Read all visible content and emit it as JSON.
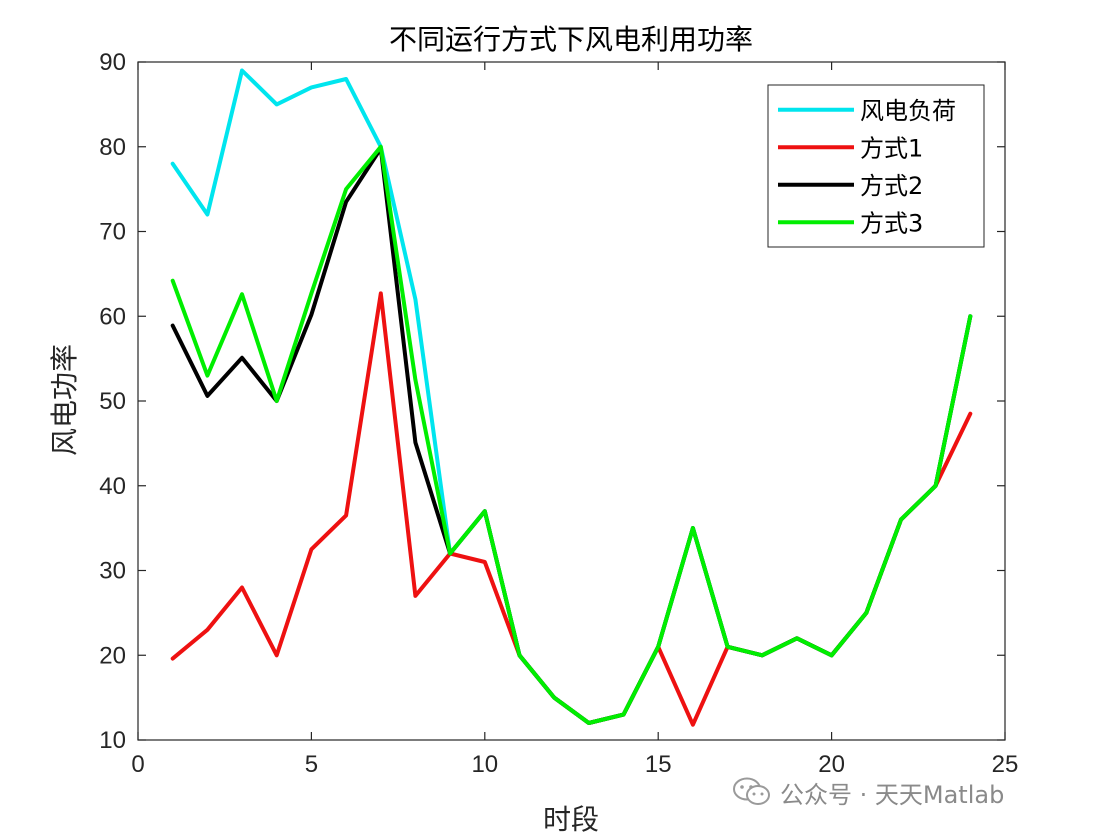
{
  "chart_data": {
    "type": "line",
    "title": "不同运行方式下风电利用功率",
    "xlabel": "时段",
    "ylabel": "风电功率",
    "xlim": [
      0,
      25
    ],
    "ylim": [
      10,
      90
    ],
    "xticks": [
      0,
      5,
      10,
      15,
      20,
      25
    ],
    "yticks": [
      10,
      20,
      30,
      40,
      50,
      60,
      70,
      80,
      90
    ],
    "x": [
      1,
      2,
      3,
      4,
      5,
      6,
      7,
      8,
      9,
      10,
      11,
      12,
      13,
      14,
      15,
      16,
      17,
      18,
      19,
      20,
      21,
      22,
      23,
      24
    ],
    "series": [
      {
        "name": "风电负荷",
        "color": "#00e5ee",
        "values": [
          78,
          72,
          89,
          85,
          87,
          88,
          80,
          62,
          32,
          37,
          20,
          15,
          12,
          13,
          21,
          35,
          21,
          20,
          22,
          20,
          25,
          36,
          40,
          60
        ]
      },
      {
        "name": "方式1",
        "color": "#ee1111",
        "values": [
          19.6,
          23,
          28,
          20,
          32.5,
          36.5,
          62.7,
          27,
          32,
          31,
          20,
          15,
          12,
          13,
          21,
          11.8,
          21,
          20,
          22,
          20,
          25,
          36,
          40,
          48.5
        ]
      },
      {
        "name": "方式2",
        "color": "#000000",
        "values": [
          58.9,
          50.6,
          55.1,
          50,
          60.2,
          73.5,
          79.8,
          45.1,
          32,
          37,
          20,
          15,
          12,
          13,
          21,
          35,
          21,
          20,
          22,
          20,
          25,
          36,
          40,
          60
        ]
      },
      {
        "name": "方式3",
        "color": "#00ee00",
        "values": [
          64.2,
          53,
          62.6,
          50,
          62.7,
          75,
          80,
          52.5,
          32,
          37,
          20,
          15,
          12,
          13,
          21,
          35,
          21,
          20,
          22,
          20,
          25,
          36,
          40,
          60
        ]
      }
    ],
    "legend": "top-right",
    "grid": false
  },
  "watermark": {
    "text": "公众号 · 天天Matlab",
    "icon": "wechat-icon"
  }
}
